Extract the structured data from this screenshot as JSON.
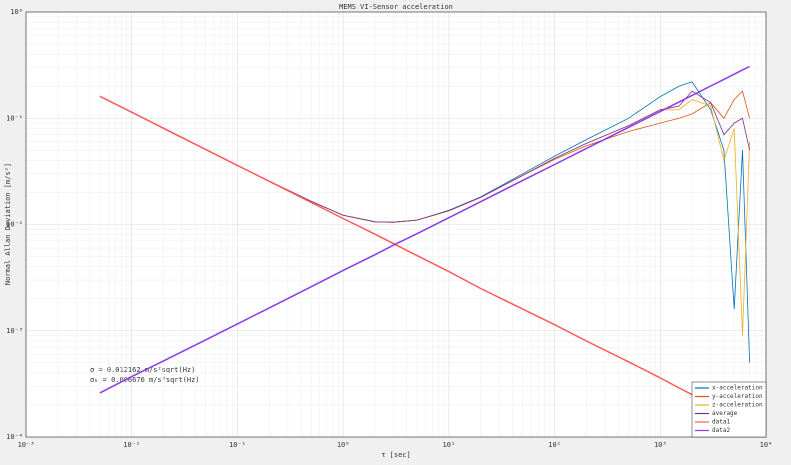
{
  "chart_data": {
    "type": "line",
    "title": "MEMS VI-Sensor acceleration",
    "xlabel": "τ [sec]",
    "ylabel": "Normal Allan Deviation [m/s²]",
    "xscale": "log",
    "yscale": "log",
    "grid": true,
    "minor_grid": true,
    "legend": "lower right",
    "xlim": [
      0.001,
      10000
    ],
    "xticks": [
      {
        "value": 0.001,
        "label": "10⁻³"
      },
      {
        "value": 0.01,
        "label": "10⁻²"
      },
      {
        "value": 0.1,
        "label": "10⁻¹"
      },
      {
        "value": 1,
        "label": "10⁰"
      },
      {
        "value": 10,
        "label": "10¹"
      },
      {
        "value": 100,
        "label": "10²"
      },
      {
        "value": 1000,
        "label": "10³"
      },
      {
        "value": 10000,
        "label": "10⁴"
      }
    ],
    "ylim": [
      0.0001,
      1
    ],
    "yticks": [
      {
        "value": 0.0001,
        "label": "10⁻⁴"
      },
      {
        "value": 0.001,
        "label": "10⁻³"
      },
      {
        "value": 0.01,
        "label": "10⁻²"
      },
      {
        "value": 0.1,
        "label": "10⁻¹"
      },
      {
        "value": 1,
        "label": "10⁰"
      }
    ],
    "annotations": [
      "σ = 0.012162 m/s²sqrt(Hz)",
      "σₖ = 0.006676 m/s³sqrt(Hz)"
    ],
    "x": [
      0.005,
      0.01,
      0.02,
      0.05,
      0.1,
      0.2,
      0.5,
      1,
      2,
      3,
      5,
      10,
      20,
      50,
      100,
      200,
      500,
      1000,
      1500,
      2000,
      3000,
      4000,
      5000,
      6000,
      7000
    ],
    "series": [
      {
        "name": "x-acceleration",
        "color": "#0072bd",
        "values": [
          0.161,
          0.114,
          0.081,
          0.051,
          0.036,
          0.0256,
          0.0165,
          0.0122,
          0.0106,
          0.0105,
          0.011,
          0.0136,
          0.0182,
          0.03,
          0.044,
          0.063,
          0.1,
          0.16,
          0.2,
          0.22,
          0.12,
          0.05,
          0.0016,
          0.05,
          0.0005
        ]
      },
      {
        "name": "y-acceleration",
        "color": "#d95319",
        "values": [
          0.161,
          0.114,
          0.081,
          0.051,
          0.036,
          0.0256,
          0.0165,
          0.0122,
          0.0106,
          0.0105,
          0.011,
          0.0135,
          0.018,
          0.029,
          0.041,
          0.055,
          0.075,
          0.09,
          0.1,
          0.11,
          0.14,
          0.1,
          0.15,
          0.18,
          0.1
        ]
      },
      {
        "name": "z-acceleration",
        "color": "#edb120",
        "values": [
          0.161,
          0.114,
          0.081,
          0.051,
          0.036,
          0.0256,
          0.0165,
          0.0122,
          0.0106,
          0.0105,
          0.011,
          0.0135,
          0.018,
          0.029,
          0.042,
          0.058,
          0.085,
          0.12,
          0.12,
          0.15,
          0.13,
          0.04,
          0.08,
          0.0009,
          0.06
        ]
      },
      {
        "name": "average",
        "color": "#7e2f8e",
        "values": [
          0.161,
          0.114,
          0.081,
          0.051,
          0.036,
          0.0256,
          0.0165,
          0.0122,
          0.0106,
          0.0105,
          0.011,
          0.0135,
          0.018,
          0.029,
          0.042,
          0.058,
          0.085,
          0.12,
          0.13,
          0.18,
          0.14,
          0.07,
          0.09,
          0.1,
          0.05
        ]
      },
      {
        "name": "data1",
        "color": "#ff5a5a",
        "values": [
          0.161,
          0.114,
          0.0805,
          0.0509,
          0.036,
          0.0255,
          0.0161,
          0.0114,
          0.0081,
          0.0066,
          0.0051,
          0.0036,
          0.0025,
          0.0016,
          0.00114,
          0.0008,
          0.00051,
          0.00036,
          0.00029,
          0.00025,
          0.00021,
          0.00018,
          0.00016,
          0.00015,
          0.00014
        ]
      },
      {
        "name": "data2",
        "color": "#8b3be8",
        "values": [
          0.00026,
          0.00037,
          0.00052,
          0.00082,
          0.00116,
          0.00164,
          0.0026,
          0.0037,
          0.0052,
          0.0064,
          0.0082,
          0.0116,
          0.0164,
          0.026,
          0.0367,
          0.052,
          0.082,
          0.116,
          0.142,
          0.164,
          0.201,
          0.232,
          0.26,
          0.285,
          0.307
        ]
      }
    ]
  }
}
